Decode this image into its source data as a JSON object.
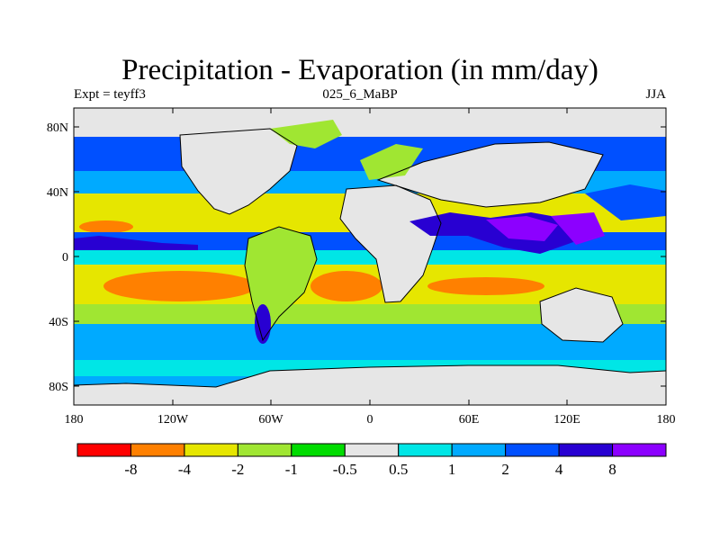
{
  "map": {
    "title": "Precipitation - Evaporation (in mm/day)",
    "left_label": "Expt = teyff3",
    "center_label": "025_6_MaBP",
    "right_label": "JJA",
    "lat_ticks": [
      "80N",
      "40N",
      "0",
      "40S",
      "80S"
    ],
    "lon_ticks": [
      "180",
      "120W",
      "60W",
      "0",
      "60E",
      "120E",
      "180"
    ]
  },
  "colorbar": {
    "colors": [
      "#ff0000",
      "#ff8000",
      "#e6e600",
      "#a0e632",
      "#00dc00",
      "#e6e6e6",
      "#00e6e6",
      "#00aaff",
      "#0050ff",
      "#2800d2",
      "#8c00ff"
    ],
    "labels": [
      "-8",
      "-4",
      "-2",
      "-1",
      "-0.5",
      "0.5",
      "1",
      "2",
      "4",
      "8"
    ]
  },
  "legend_colors": {
    "ocean_zero": "#e6e6e6"
  }
}
